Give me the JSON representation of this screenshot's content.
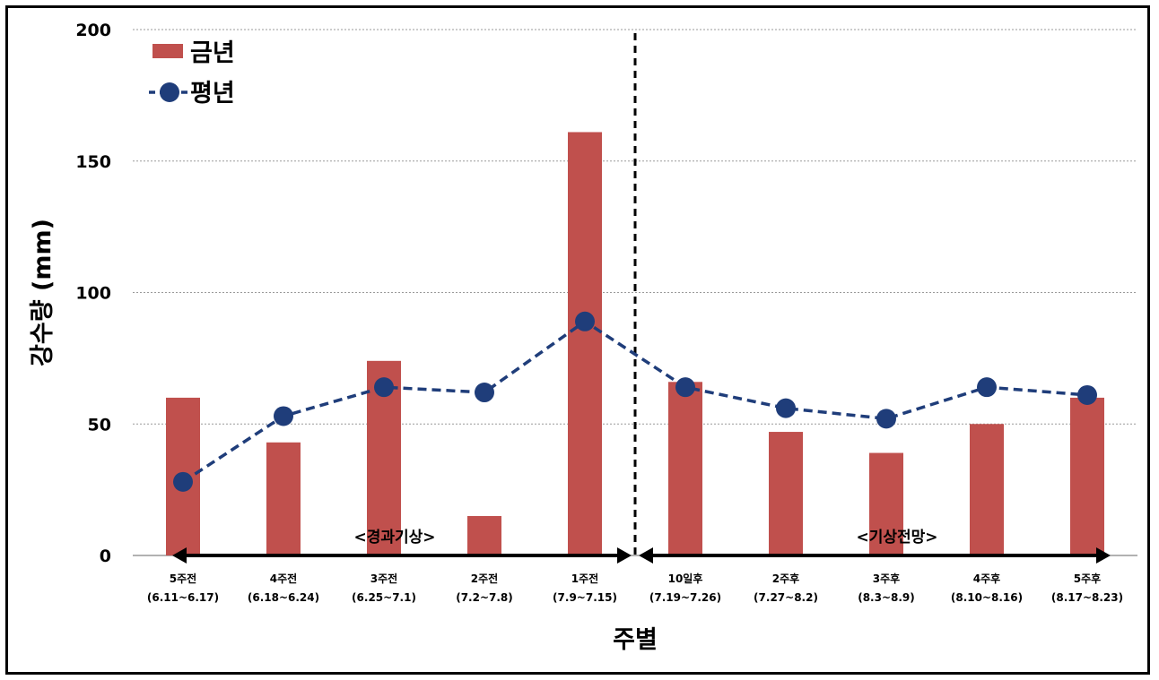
{
  "chart_data": {
    "type": "bar",
    "categories": [
      [
        "5주전",
        "(6.11~6.17)"
      ],
      [
        "4주전",
        "(6.18~6.24)"
      ],
      [
        "3주전",
        "(6.25~7.1)"
      ],
      [
        "2주전",
        "(7.2~7.8)"
      ],
      [
        "1주전",
        "(7.9~7.15)"
      ],
      [
        "10일후",
        "(7.19~7.26)"
      ],
      [
        "2주후",
        "(7.27~8.2)"
      ],
      [
        "3주후",
        "(8.3~8.9)"
      ],
      [
        "4주후",
        "(8.10~8.16)"
      ],
      [
        "5주후",
        "(8.17~8.23)"
      ]
    ],
    "series": [
      {
        "name": "금년",
        "kind": "bar",
        "color": "#c0504d",
        "values": [
          60,
          43,
          74,
          15,
          161,
          66,
          47,
          39,
          50,
          60
        ]
      },
      {
        "name": "평년",
        "kind": "line",
        "color": "#1f3d7a",
        "values": [
          28,
          53,
          64,
          62,
          89,
          64,
          56,
          52,
          64,
          61
        ]
      }
    ],
    "xlabel": "주별",
    "ylabel": "강수량 (mm)",
    "ylim": [
      0,
      200
    ],
    "yticks": [
      0,
      50,
      100,
      150,
      200
    ],
    "grid": true,
    "legend_position": "top-left",
    "annotations": {
      "past_label": "<경과기상>",
      "future_label": "<기상전망>"
    }
  }
}
